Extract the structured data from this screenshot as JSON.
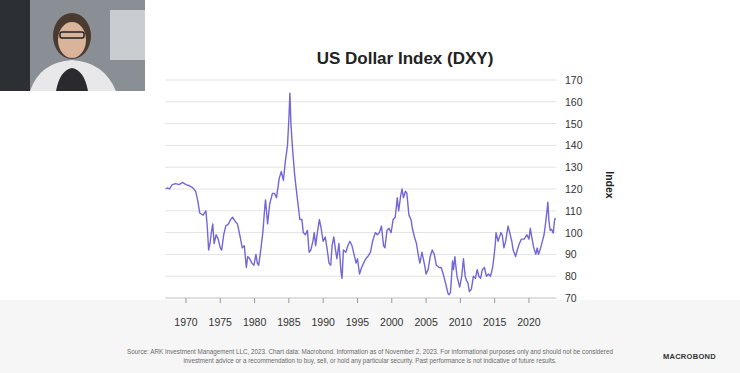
{
  "chart_data": {
    "type": "line",
    "title": "US Dollar Index (DXY)",
    "y_label": "Index",
    "source": [
      "Source: ARK Investment Management LLC, 2023. Chart data: Macrobond. Information as of November 2, 2023. For informational purposes only and should not be considered",
      "investment advice or a recommendation to buy, sell, or hold any particular security. Past performance is not indicative of future results."
    ],
    "logo": "MACROBOND",
    "color": "#7466d9",
    "grid": true,
    "xlim": [
      1967,
      2024
    ],
    "xticks": [
      1970,
      1975,
      1980,
      1985,
      1990,
      1995,
      2000,
      2005,
      2010,
      2015,
      2020
    ],
    "ylim": [
      70,
      170
    ],
    "yticks": [
      70,
      80,
      90,
      100,
      110,
      120,
      130,
      140,
      150,
      160,
      170
    ],
    "x": [
      1967.0,
      1967.3,
      1967.6,
      1968.0,
      1968.5,
      1969.0,
      1969.5,
      1970.0,
      1970.5,
      1971.0,
      1971.4,
      1971.7,
      1972.0,
      1972.5,
      1972.9,
      1973.1,
      1973.3,
      1973.5,
      1973.7,
      1973.9,
      1974.1,
      1974.4,
      1974.7,
      1975.0,
      1975.2,
      1975.5,
      1975.8,
      1976.2,
      1976.5,
      1976.8,
      1977.2,
      1977.5,
      1977.9,
      1978.2,
      1978.5,
      1978.8,
      1979.0,
      1979.3,
      1979.6,
      1979.9,
      1980.2,
      1980.4,
      1980.6,
      1980.9,
      1981.2,
      1981.5,
      1981.6,
      1981.9,
      1982.2,
      1982.6,
      1982.9,
      1983.2,
      1983.6,
      1983.9,
      1984.2,
      1984.5,
      1984.8,
      1985.0,
      1985.15,
      1985.3,
      1985.5,
      1985.8,
      1986.0,
      1986.3,
      1986.6,
      1986.9,
      1987.1,
      1987.4,
      1987.7,
      1987.95,
      1988.2,
      1988.5,
      1988.7,
      1988.9,
      1989.2,
      1989.45,
      1989.7,
      1990.0,
      1990.3,
      1990.6,
      1990.85,
      1991.1,
      1991.3,
      1991.55,
      1991.8,
      1992.0,
      1992.3,
      1992.6,
      1992.75,
      1992.95,
      1993.3,
      1993.6,
      1993.9,
      1994.2,
      1994.5,
      1994.8,
      1995.0,
      1995.3,
      1995.6,
      1995.9,
      1996.2,
      1996.5,
      1996.9,
      1997.2,
      1997.6,
      1997.9,
      1998.2,
      1998.5,
      1998.8,
      1999.0,
      1999.3,
      1999.6,
      1999.9,
      2000.2,
      2000.5,
      2000.8,
      2001.0,
      2001.3,
      2001.5,
      2001.7,
      2002.0,
      2002.2,
      2002.5,
      2002.8,
      2003.0,
      2003.3,
      2003.6,
      2003.9,
      2004.1,
      2004.4,
      2004.8,
      2005.0,
      2005.3,
      2005.6,
      2005.9,
      2006.2,
      2006.5,
      2006.9,
      2007.2,
      2007.5,
      2007.9,
      2008.2,
      2008.35,
      2008.55,
      2008.7,
      2008.85,
      2009.0,
      2009.2,
      2009.5,
      2009.9,
      2010.2,
      2010.45,
      2010.7,
      2010.9,
      2011.1,
      2011.3,
      2011.6,
      2011.9,
      2012.2,
      2012.45,
      2012.7,
      2012.95,
      2013.2,
      2013.5,
      2013.8,
      2014.1,
      2014.4,
      2014.7,
      2014.9,
      2015.1,
      2015.2,
      2015.5,
      2015.9,
      2016.1,
      2016.35,
      2016.6,
      2016.95,
      2017.2,
      2017.5,
      2017.7,
      2018.05,
      2018.3,
      2018.6,
      2018.9,
      2019.3,
      2019.7,
      2020.0,
      2020.2,
      2020.4,
      2020.7,
      2021.0,
      2021.2,
      2021.4,
      2021.7,
      2021.95,
      2022.2,
      2022.45,
      2022.7,
      2022.75,
      2022.9,
      2023.0,
      2023.1,
      2023.3,
      2023.5,
      2023.55,
      2023.7,
      2023.8,
      2023.84
    ],
    "values": [
      120,
      120.5,
      120,
      122,
      122.5,
      122,
      123,
      122,
      121.5,
      120.5,
      119,
      115,
      109,
      108,
      110,
      103,
      92,
      95,
      100,
      104,
      95,
      99,
      97,
      93,
      92,
      99,
      103,
      104,
      106,
      107,
      105,
      104,
      98,
      93,
      94,
      84,
      89,
      88,
      86,
      85,
      90,
      86,
      85,
      92,
      100,
      112,
      115,
      104,
      113,
      118,
      118,
      116,
      125,
      128,
      124,
      133,
      140,
      152,
      164,
      150,
      140,
      128,
      122,
      114,
      106,
      106,
      100,
      99,
      101,
      91,
      92,
      96,
      100,
      94,
      101,
      106,
      102,
      96,
      98,
      92,
      86,
      85,
      94,
      98,
      92,
      88,
      95,
      82,
      79,
      92,
      91,
      94,
      96,
      94,
      90,
      86,
      88,
      81,
      84,
      86,
      88,
      89,
      91,
      96,
      100,
      99,
      100,
      103,
      94,
      93,
      101,
      102,
      100,
      106,
      107,
      116,
      110,
      117,
      120,
      116,
      119,
      118,
      108,
      106,
      102,
      98,
      95,
      89,
      86,
      91,
      85,
      81,
      83,
      89,
      92,
      90,
      85,
      84,
      84,
      81,
      76,
      72,
      71.5,
      72.5,
      79,
      87,
      83,
      89,
      80,
      75,
      80,
      88,
      80,
      78,
      77,
      73,
      74,
      80,
      79,
      83,
      80,
      79,
      83,
      84,
      80,
      81,
      80,
      84,
      89,
      95,
      100,
      96,
      100,
      99,
      93,
      96,
      103,
      100,
      96,
      92,
      89,
      92,
      95,
      97,
      97,
      99,
      97,
      102,
      98,
      93,
      90,
      93,
      90,
      93,
      96,
      99,
      105,
      112,
      114,
      106,
      103,
      101,
      101.5,
      100,
      99.8,
      105,
      106.5,
      106
    ]
  }
}
